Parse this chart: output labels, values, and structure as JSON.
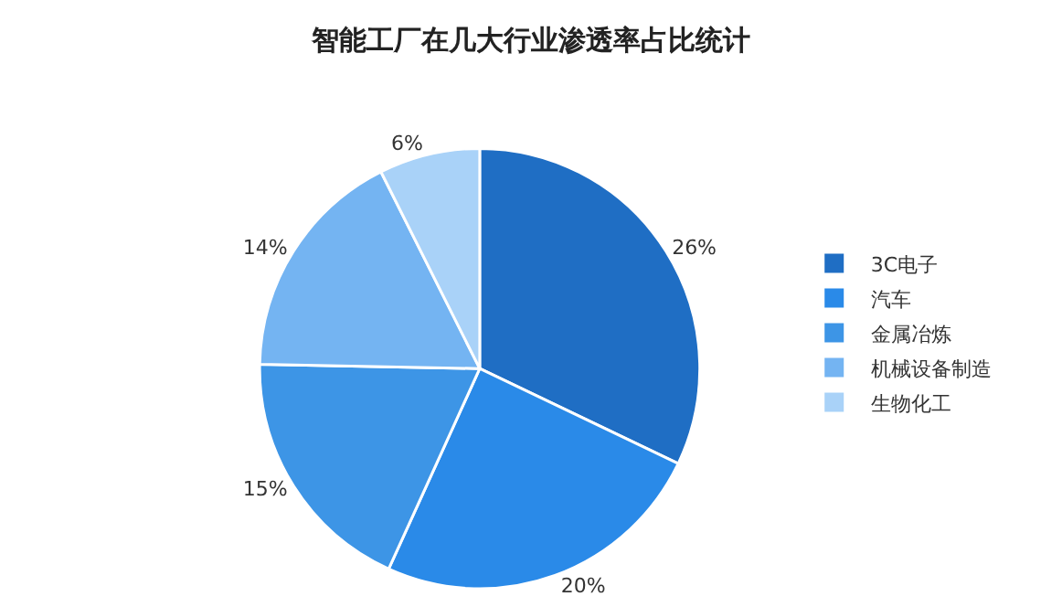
{
  "chart_data": {
    "type": "pie",
    "title": "智能工厂在几大行业渗透率占比统计",
    "categories": [
      "3C电子",
      "汽车",
      "金属冶炼",
      "机械设备制造",
      "生物化工"
    ],
    "values": [
      26,
      20,
      15,
      14,
      6
    ],
    "colors": [
      "#1f6ec4",
      "#2a8ae8",
      "#3d95e6",
      "#74b4f2",
      "#a9d2f8"
    ],
    "value_labels": [
      "26%",
      "20%",
      "15%",
      "14%",
      "6%"
    ],
    "legend": "right"
  }
}
